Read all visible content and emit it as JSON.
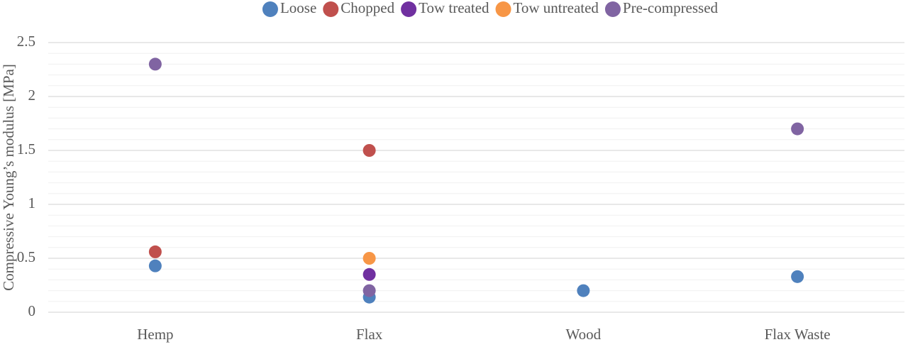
{
  "chart_data": {
    "type": "scatter",
    "y_label": "Compressive Young’s modulus [MPa]",
    "categories": [
      "Hemp",
      "Flax",
      "Wood",
      "Flax Waste"
    ],
    "series": [
      {
        "name": "Loose",
        "color": "#4f81bd",
        "values": [
          0.43,
          0.14,
          0.2,
          0.33
        ]
      },
      {
        "name": "Chopped",
        "color": "#c0504d",
        "values": [
          0.56,
          1.5,
          null,
          null
        ]
      },
      {
        "name": "Tow treated",
        "color": "#7030a0",
        "values": [
          null,
          0.35,
          null,
          null
        ]
      },
      {
        "name": "Tow untreated",
        "color": "#f79646",
        "values": [
          null,
          0.5,
          null,
          null
        ]
      },
      {
        "name": "Pre-compressed",
        "color": "#8064a2",
        "values": [
          2.3,
          0.2,
          null,
          1.7
        ]
      }
    ],
    "ylim": [
      0,
      2.5
    ],
    "yticks": [
      0,
      0.5,
      1,
      1.5,
      2,
      2.5
    ],
    "minor_yticks": [
      0.1,
      0.2,
      0.3,
      0.4,
      0.6,
      0.7,
      0.8,
      0.9,
      1.1,
      1.2,
      1.3,
      1.4,
      1.6,
      1.7,
      1.8,
      1.9,
      2.1,
      2.2,
      2.3,
      2.4
    ],
    "grid": true,
    "legend": "top"
  }
}
